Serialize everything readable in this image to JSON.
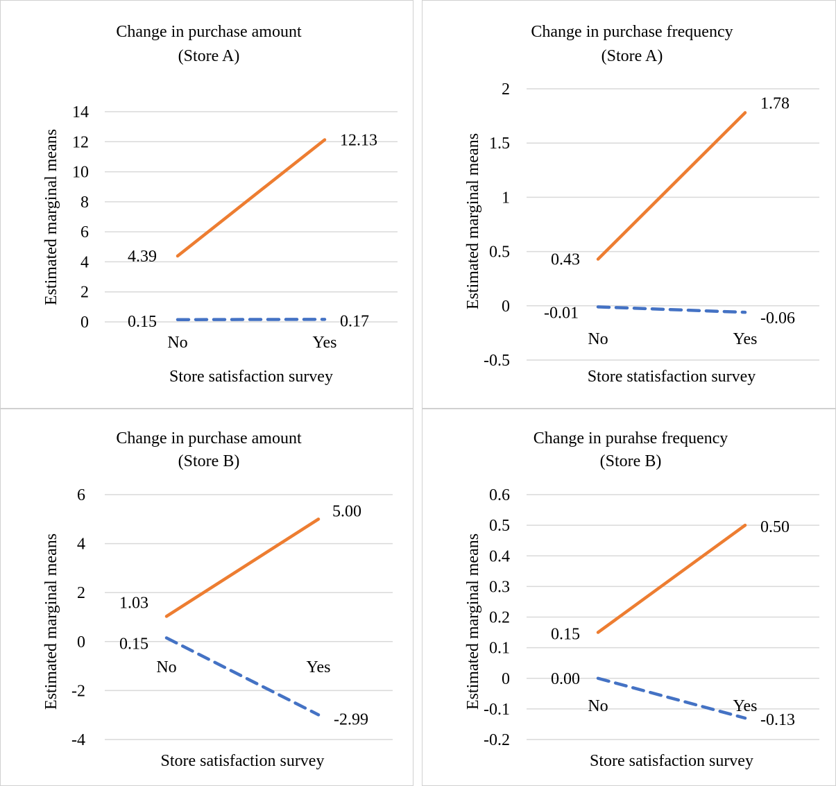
{
  "chart_data": [
    {
      "type": "line",
      "title": "Change in purchase amount",
      "subtitle": "(Store A)",
      "xlabel": "Store satisfaction survey",
      "ylabel": "Estimated marginal means",
      "categories": [
        "No",
        "Yes"
      ],
      "ylim": [
        0,
        14
      ],
      "yticks": [
        0,
        2,
        4,
        6,
        8,
        10,
        12,
        14
      ],
      "grid": true,
      "series": [
        {
          "values": [
            4.39,
            12.13
          ],
          "labels": [
            "4.39",
            "12.13"
          ],
          "color": "#ED7D31",
          "dash": "solid"
        },
        {
          "values": [
            0.15,
            0.17
          ],
          "labels": [
            "0.15",
            "0.17"
          ],
          "color": "#4472C4",
          "dash": "dashed"
        }
      ]
    },
    {
      "type": "line",
      "title": "Change in purchase frequency",
      "subtitle": "(Store A)",
      "xlabel": "Store statisfaction survey",
      "ylabel": "Estimated marginal means",
      "categories": [
        "No",
        "Yes"
      ],
      "ylim": [
        -0.5,
        2
      ],
      "yticks": [
        -0.5,
        0,
        0.5,
        1,
        1.5,
        2
      ],
      "grid": true,
      "series": [
        {
          "values": [
            0.43,
            1.78
          ],
          "labels": [
            "0.43",
            "1.78"
          ],
          "color": "#ED7D31",
          "dash": "solid"
        },
        {
          "values": [
            -0.01,
            -0.06
          ],
          "labels": [
            "-0.01",
            "-0.06"
          ],
          "color": "#4472C4",
          "dash": "dashed"
        }
      ]
    },
    {
      "type": "line",
      "title": "Change in purchase amount",
      "subtitle": "(Store B)",
      "xlabel": "Store satisfaction survey",
      "ylabel": "Estimated marginal means",
      "categories": [
        "No",
        "Yes"
      ],
      "ylim": [
        -4,
        6
      ],
      "yticks": [
        -4,
        -2,
        0,
        2,
        4,
        6
      ],
      "grid": true,
      "series": [
        {
          "values": [
            1.03,
            5.0
          ],
          "labels": [
            "1.03",
            "5.00"
          ],
          "color": "#ED7D31",
          "dash": "solid"
        },
        {
          "values": [
            0.15,
            -2.99
          ],
          "labels": [
            "0.15",
            "-2.99"
          ],
          "color": "#4472C4",
          "dash": "dashed"
        }
      ]
    },
    {
      "type": "line",
      "title": "Change in purahse frequency",
      "subtitle": "(Store B)",
      "xlabel": "Store satisfaction survey",
      "ylabel": "Estimated marginal means",
      "categories": [
        "No",
        "Yes"
      ],
      "ylim": [
        -0.2,
        0.6
      ],
      "yticks": [
        -0.2,
        -0.1,
        0,
        0.1,
        0.2,
        0.3,
        0.4,
        0.5,
        0.6
      ],
      "grid": true,
      "series": [
        {
          "values": [
            0.15,
            0.5
          ],
          "labels": [
            "0.15",
            "0.50"
          ],
          "color": "#ED7D31",
          "dash": "solid"
        },
        {
          "values": [
            0.0,
            -0.13
          ],
          "labels": [
            "0.00",
            "-0.13"
          ],
          "color": "#4472C4",
          "dash": "dashed"
        }
      ]
    }
  ]
}
